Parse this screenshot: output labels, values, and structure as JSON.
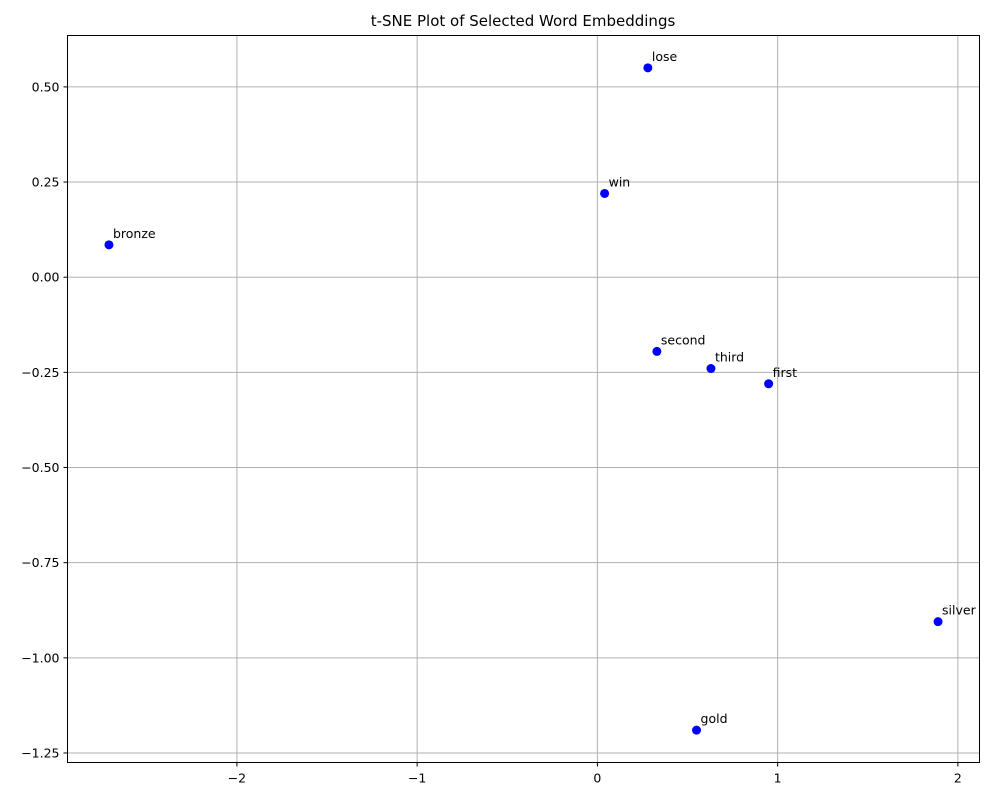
{
  "chart_data": {
    "type": "scatter",
    "title": "t-SNE Plot of Selected Word Embeddings",
    "xlabel": "",
    "ylabel": "",
    "xlim": [
      -2.94,
      2.12
    ],
    "ylim": [
      -1.275,
      0.635
    ],
    "grid": true,
    "point_color": "#0000ff",
    "xticks": [
      {
        "value": -2,
        "label": "−2"
      },
      {
        "value": -1,
        "label": "−1"
      },
      {
        "value": 0,
        "label": "0"
      },
      {
        "value": 1,
        "label": "1"
      },
      {
        "value": 2,
        "label": "2"
      }
    ],
    "yticks": [
      {
        "value": 0.5,
        "label": "0.50"
      },
      {
        "value": 0.25,
        "label": "0.25"
      },
      {
        "value": 0.0,
        "label": "0.00"
      },
      {
        "value": -0.25,
        "label": "−0.25"
      },
      {
        "value": -0.5,
        "label": "−0.50"
      },
      {
        "value": -0.75,
        "label": "−0.75"
      },
      {
        "value": -1.0,
        "label": "−1.00"
      },
      {
        "value": -1.25,
        "label": "−1.25"
      }
    ],
    "points": [
      {
        "label": "lose",
        "x": 0.28,
        "y": 0.55
      },
      {
        "label": "win",
        "x": 0.04,
        "y": 0.22
      },
      {
        "label": "bronze",
        "x": -2.71,
        "y": 0.085
      },
      {
        "label": "second",
        "x": 0.33,
        "y": -0.195
      },
      {
        "label": "third",
        "x": 0.63,
        "y": -0.24
      },
      {
        "label": "first",
        "x": 0.95,
        "y": -0.28
      },
      {
        "label": "silver",
        "x": 1.89,
        "y": -0.905
      },
      {
        "label": "gold",
        "x": 0.55,
        "y": -1.19
      }
    ]
  }
}
